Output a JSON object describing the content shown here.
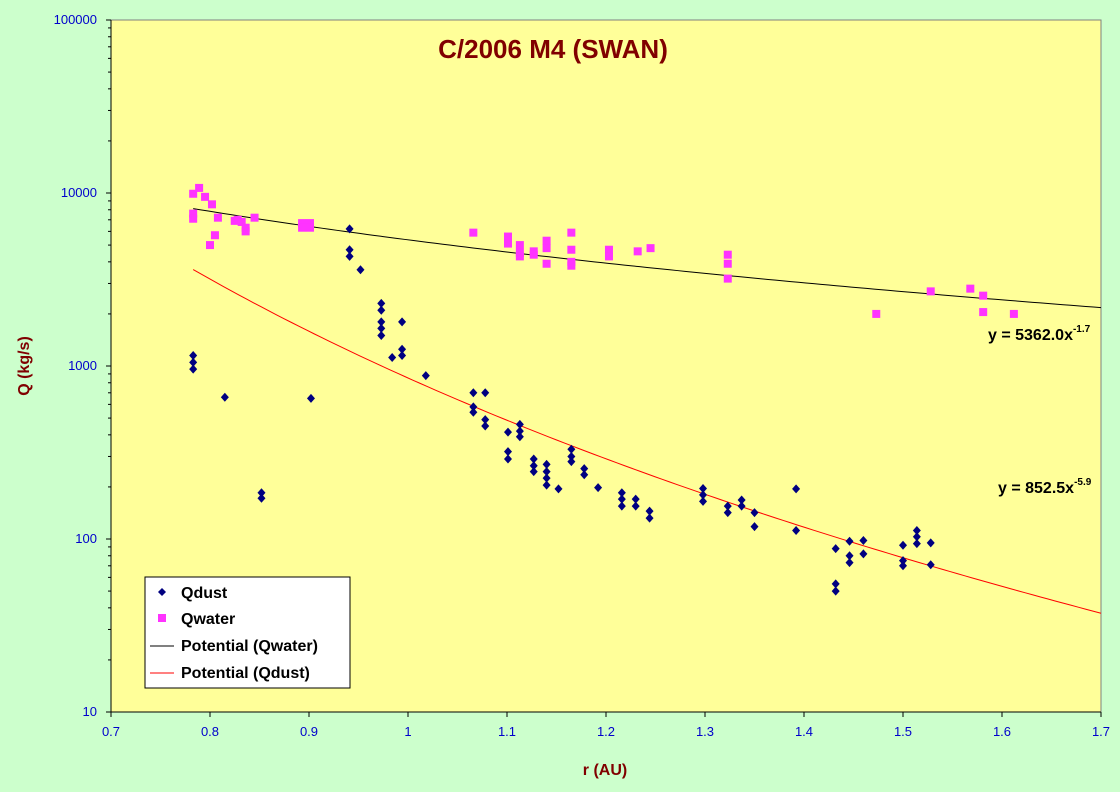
{
  "chart_data": {
    "type": "scatter",
    "title": "C/2006 M4 (SWAN)",
    "xlabel": "r (AU)",
    "ylabel": "Q (kg/s)",
    "xlim": [
      0.7,
      1.7
    ],
    "ylim": [
      10,
      100000
    ],
    "yscale": "log",
    "x_ticks": [
      "0.7",
      "0.8",
      "0.9",
      "1",
      "1.1",
      "1.2",
      "1.3",
      "1.4",
      "1.5",
      "1.6",
      "1.7"
    ],
    "y_ticks": [
      "10",
      "100",
      "1000",
      "10000",
      "100000"
    ],
    "grid": false,
    "legend_position": "bottom-left",
    "colors": {
      "page_background": "#ccffcc",
      "plot_background": "#ffff99",
      "qdust": "#000080",
      "qwater": "#ff33ff",
      "qwater_fit": "#000000",
      "qdust_fit": "#ff0000",
      "tick_text": "#0000cc",
      "title_text": "#800000"
    },
    "series": [
      {
        "name": "Qdust",
        "kind": "scatter",
        "marker": "diamond",
        "points": [
          [
            0.783,
            1150
          ],
          [
            0.783,
            1050
          ],
          [
            0.783,
            960
          ],
          [
            0.815,
            660
          ],
          [
            0.852,
            185
          ],
          [
            0.852,
            172
          ],
          [
            0.902,
            650
          ],
          [
            0.941,
            6200
          ],
          [
            0.941,
            4700
          ],
          [
            0.941,
            4300
          ],
          [
            0.952,
            3600
          ],
          [
            0.973,
            2300
          ],
          [
            0.973,
            2100
          ],
          [
            0.973,
            1800
          ],
          [
            0.973,
            1650
          ],
          [
            0.973,
            1500
          ],
          [
            0.984,
            1120
          ],
          [
            0.994,
            1800
          ],
          [
            0.994,
            1250
          ],
          [
            0.994,
            1150
          ],
          [
            1.018,
            880
          ],
          [
            1.066,
            700
          ],
          [
            1.066,
            580
          ],
          [
            1.066,
            540
          ],
          [
            1.078,
            700
          ],
          [
            1.078,
            490
          ],
          [
            1.078,
            450
          ],
          [
            1.101,
            415
          ],
          [
            1.101,
            320
          ],
          [
            1.101,
            290
          ],
          [
            1.113,
            460
          ],
          [
            1.113,
            420
          ],
          [
            1.113,
            390
          ],
          [
            1.127,
            290
          ],
          [
            1.127,
            265
          ],
          [
            1.127,
            245
          ],
          [
            1.14,
            270
          ],
          [
            1.14,
            245
          ],
          [
            1.14,
            225
          ],
          [
            1.14,
            205
          ],
          [
            1.152,
            195
          ],
          [
            1.165,
            330
          ],
          [
            1.165,
            300
          ],
          [
            1.165,
            280
          ],
          [
            1.178,
            255
          ],
          [
            1.178,
            235
          ],
          [
            1.192,
            198
          ],
          [
            1.216,
            185
          ],
          [
            1.216,
            170
          ],
          [
            1.216,
            155
          ],
          [
            1.23,
            170
          ],
          [
            1.23,
            155
          ],
          [
            1.244,
            145
          ],
          [
            1.244,
            132
          ],
          [
            1.298,
            196
          ],
          [
            1.298,
            180
          ],
          [
            1.298,
            165
          ],
          [
            1.323,
            155
          ],
          [
            1.323,
            142
          ],
          [
            1.337,
            168
          ],
          [
            1.337,
            155
          ],
          [
            1.35,
            142
          ],
          [
            1.35,
            118
          ],
          [
            1.392,
            195
          ],
          [
            1.392,
            112
          ],
          [
            1.432,
            88
          ],
          [
            1.432,
            55
          ],
          [
            1.432,
            50
          ],
          [
            1.446,
            97
          ],
          [
            1.446,
            80
          ],
          [
            1.446,
            73
          ],
          [
            1.46,
            98
          ],
          [
            1.46,
            82
          ],
          [
            1.5,
            92
          ],
          [
            1.5,
            75
          ],
          [
            1.5,
            70
          ],
          [
            1.514,
            112
          ],
          [
            1.514,
            103
          ],
          [
            1.514,
            94
          ],
          [
            1.528,
            95
          ],
          [
            1.528,
            71
          ]
        ]
      },
      {
        "name": "Qwater",
        "kind": "scatter",
        "marker": "square",
        "points": [
          [
            0.783,
            9900
          ],
          [
            0.783,
            7600
          ],
          [
            0.783,
            7100
          ],
          [
            0.789,
            10700
          ],
          [
            0.795,
            9500
          ],
          [
            0.8,
            5000
          ],
          [
            0.802,
            8600
          ],
          [
            0.805,
            5700
          ],
          [
            0.808,
            7200
          ],
          [
            0.825,
            6900
          ],
          [
            0.828,
            7000
          ],
          [
            0.832,
            6800
          ],
          [
            0.836,
            6300
          ],
          [
            0.836,
            6000
          ],
          [
            0.845,
            7200
          ],
          [
            0.893,
            6700
          ],
          [
            0.893,
            6300
          ],
          [
            0.901,
            6700
          ],
          [
            0.901,
            6300
          ],
          [
            1.066,
            5900
          ],
          [
            1.101,
            5600
          ],
          [
            1.101,
            5100
          ],
          [
            1.113,
            5000
          ],
          [
            1.113,
            4500
          ],
          [
            1.113,
            4300
          ],
          [
            1.127,
            4600
          ],
          [
            1.127,
            4400
          ],
          [
            1.14,
            5300
          ],
          [
            1.14,
            4800
          ],
          [
            1.14,
            3900
          ],
          [
            1.165,
            5900
          ],
          [
            1.165,
            4700
          ],
          [
            1.165,
            4000
          ],
          [
            1.165,
            3800
          ],
          [
            1.203,
            4700
          ],
          [
            1.203,
            4300
          ],
          [
            1.232,
            4600
          ],
          [
            1.245,
            4800
          ],
          [
            1.323,
            4400
          ],
          [
            1.323,
            3900
          ],
          [
            1.323,
            3200
          ],
          [
            1.473,
            2000
          ],
          [
            1.528,
            2700
          ],
          [
            1.568,
            2800
          ],
          [
            1.581,
            2550
          ],
          [
            1.581,
            2050
          ],
          [
            1.612,
            2000
          ]
        ]
      },
      {
        "name": "Potential (Qwater)",
        "kind": "fit",
        "coefficient": 5362.0,
        "exponent": -1.7,
        "x_range": [
          0.783,
          1.7
        ]
      },
      {
        "name": "Potential (Qdust)",
        "kind": "fit",
        "coefficient": 852.5,
        "exponent": -5.9,
        "x_range": [
          0.783,
          1.7
        ]
      }
    ],
    "annotations": [
      {
        "label": "y = 5362.0x",
        "exponent": "-1.7"
      },
      {
        "label": "y = 852.5x",
        "exponent": "-5.9"
      }
    ]
  }
}
